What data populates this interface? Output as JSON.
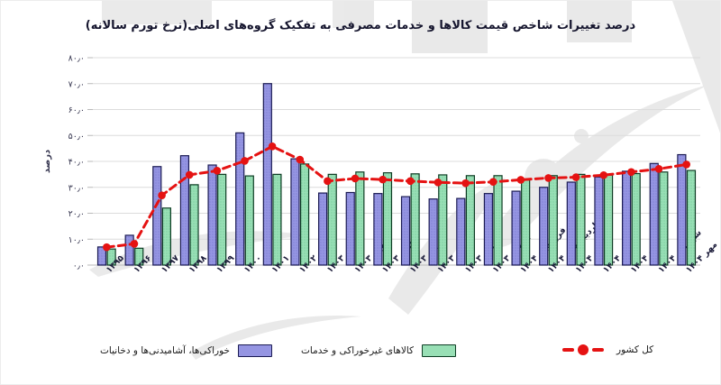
{
  "title": "درصد تغییرات شاخص قیمت کالاها و خدمات مصرفی به تفکیک گروه‌های اصلی(نرخ تورم سالانه)",
  "colors": {
    "food_bar_fill": "#9595e2",
    "food_bar_border": "#1c1c54",
    "nonfood_bar_fill": "#98dfb5",
    "nonfood_bar_border": "#0e3d24",
    "total_line": "#e51212",
    "gridline": "#dcdcdc",
    "axis": "#b9b9b9",
    "title_text": "#15152e",
    "watermark": "#d0d0d0"
  },
  "chart_data": {
    "type": "bar",
    "title": "درصد تغییرات شاخص قیمت کالاها و خدمات مصرفی به تفکیک گروه‌های اصلی(نرخ تورم سالانه)",
    "xlabel": "",
    "ylabel": "درصد",
    "ylim": [
      0,
      80
    ],
    "grid": "horizontal",
    "legend_position": "bottom",
    "y_ticks": [
      0,
      10,
      20,
      30,
      40,
      50,
      60,
      70,
      80
    ],
    "y_tick_labels": [
      "۰٫۰",
      "۱۰٫۰",
      "۲۰٫۰",
      "۳۰٫۰",
      "۴۰٫۰",
      "۵۰٫۰",
      "۶۰٫۰",
      "۷۰٫۰",
      "۸۰٫۰"
    ],
    "categories": [
      "۱۳۹۵",
      "۱۳۹۶",
      "۱۳۹۷",
      "۱۳۹۸",
      "۱۳۹۹",
      "۱۴۰۰",
      "۱۴۰۱",
      "۱۴۰۲",
      "۱۴۰۳",
      "مهر ۱۴۰۳",
      "آبان ۱۴۰۳",
      "آذر ۱۴۰۳",
      "دی ۱۴۰۳",
      "بهمن ۱۴۰۳",
      "اسفند ۱۴۰۳",
      "فروردین ۱۴۰۴",
      "اردیبهشت ۱۴۰۴",
      "خرداد ۱۴۰۴",
      "تیر ۱۴۰۴",
      "مرداد ۱۴۰۴",
      "شهریور ۱۴۰۴",
      "مهر ۱۴۰۴"
    ],
    "series": [
      {
        "name": "خوراکی‌ها، آشامیدنی‌ها و دخانیات",
        "type": "bar",
        "color": "#9595e2",
        "border": "#1c1c54",
        "values": [
          7.0,
          11.5,
          38.0,
          42.2,
          38.6,
          51.0,
          70.0,
          41.0,
          27.8,
          28.0,
          27.6,
          26.4,
          25.5,
          25.7,
          27.6,
          28.5,
          30.0,
          32.0,
          34.0,
          36.2,
          39.2,
          42.6
        ]
      },
      {
        "name": "کالاهای غیرخوراکی و خدمات",
        "type": "bar",
        "color": "#98dfb5",
        "border": "#0e3d24",
        "values": [
          6.2,
          6.5,
          22.0,
          31.0,
          35.0,
          34.4,
          35.0,
          39.0,
          35.0,
          35.9,
          35.6,
          35.2,
          34.8,
          34.5,
          34.5,
          32.8,
          34.5,
          35.0,
          34.7,
          35.3,
          35.9,
          36.5
        ]
      },
      {
        "name": "کل کشور",
        "type": "line",
        "style": "dashed",
        "marker": "circle",
        "color": "#e51212",
        "values": [
          6.9,
          8.2,
          26.9,
          34.8,
          36.4,
          40.2,
          45.8,
          40.7,
          32.4,
          33.4,
          33.0,
          32.4,
          31.9,
          31.6,
          32.1,
          32.9,
          33.6,
          33.9,
          34.7,
          35.9,
          37.1,
          38.8
        ]
      }
    ]
  }
}
